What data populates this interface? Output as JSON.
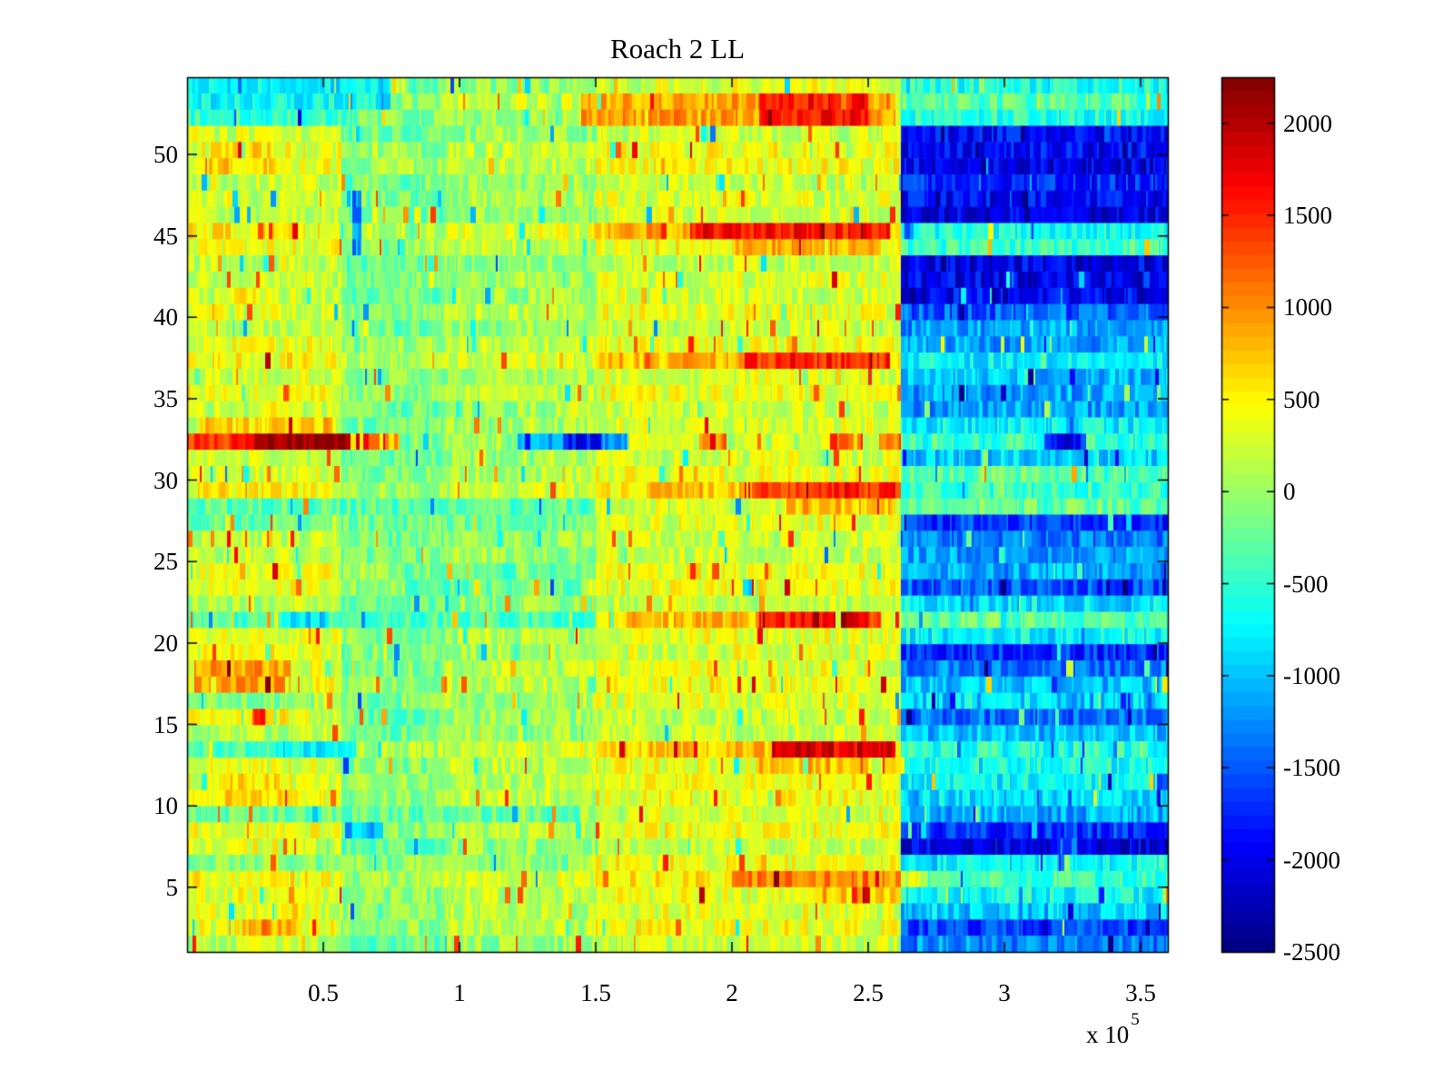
{
  "title": "Roach 2 LL",
  "axes": {
    "x_tick_labels": [
      "0.5",
      "1",
      "1.5",
      "2",
      "2.5",
      "3",
      "3.5"
    ],
    "x_tick_values": [
      0.5,
      1,
      1.5,
      2,
      2.5,
      3,
      3.5
    ],
    "x_unit_multiplier_label": "x 10",
    "x_unit_exponent": "5",
    "y_tick_labels": [
      "5",
      "10",
      "15",
      "20",
      "25",
      "30",
      "35",
      "40",
      "45",
      "50"
    ],
    "y_tick_values": [
      5,
      10,
      15,
      20,
      25,
      30,
      35,
      40,
      45,
      50
    ]
  },
  "colorbar": {
    "tick_labels": [
      "2000",
      "1500",
      "1000",
      "500",
      "0",
      "-500",
      "-1000",
      "-1500",
      "-2000",
      "-2500"
    ],
    "tick_values": [
      2000,
      1500,
      1000,
      500,
      0,
      -500,
      -1000,
      -1500,
      -2000,
      -2500
    ]
  },
  "chart_data": {
    "type": "heatmap",
    "title": "Roach 2 LL",
    "x_axis_units": "1e5",
    "xlim": [
      0,
      3.6
    ],
    "rows": 54,
    "clim": [
      -2500,
      2250
    ],
    "colormap": "jet",
    "colormap_levels": 64,
    "grid": false,
    "legend_position": "colorbar-right",
    "background_zones": [
      {
        "x": [
          0,
          0.57
        ],
        "v": 260
      },
      {
        "x": [
          0.57,
          0.95
        ],
        "v": -140
      },
      {
        "x": [
          0.95,
          1.5
        ],
        "v": 60
      },
      {
        "x": [
          1.5,
          2.62
        ],
        "v": 300
      },
      {
        "x": [
          2.62,
          3.6
        ],
        "v": -800
      }
    ],
    "divider_rows": [
      5,
      13,
      21,
      29,
      37,
      45,
      53
    ],
    "divider_boost": 150,
    "right_region_start_x": 2.62,
    "right_region_row_values": [
      -1200,
      -1700,
      -1000,
      -700,
      -500,
      -800,
      -1900,
      -1800,
      -1100,
      -1000,
      -800,
      -700,
      -600,
      -900,
      -1300,
      -900,
      -1100,
      -1400,
      -1700,
      -800,
      -250,
      -700,
      -1600,
      -1200,
      -1100,
      -1300,
      -1700,
      -200,
      -500,
      -300,
      -900,
      -400,
      -700,
      -1100,
      -1200,
      -1000,
      -800,
      -1200,
      -1100,
      -1500,
      -1900,
      -2000,
      -1900,
      -500,
      -700,
      -2000,
      -1900,
      -1700,
      -2100,
      -2000,
      -1800,
      -600,
      -300,
      -500
    ],
    "features": [
      {
        "rows": [
          27,
          28
        ],
        "x": [
          0,
          1.5
        ],
        "v": -250
      },
      {
        "rows": [
          9,
          9
        ],
        "x": [
          0,
          1.45
        ],
        "v": -250
      },
      {
        "rows": [
          6,
          6
        ],
        "x": [
          0,
          1.4
        ],
        "v": -180
      },
      {
        "rows": [
          21,
          21
        ],
        "x": [
          0,
          1.5
        ],
        "v": -350
      },
      {
        "rows": [
          21,
          21
        ],
        "x": [
          0.35,
          0.52
        ],
        "v": -850
      },
      {
        "rows": [
          13,
          13
        ],
        "x": [
          0,
          0.3
        ],
        "v": -350
      },
      {
        "rows": [
          13,
          13
        ],
        "x": [
          0.3,
          0.62
        ],
        "v": -800
      },
      {
        "rows": [
          23,
          24
        ],
        "x": [
          0.8,
          1.45
        ],
        "v": -350
      },
      {
        "rows": [
          53,
          54
        ],
        "x": [
          0,
          0.75
        ],
        "v": -650
      },
      {
        "rows": [
          52,
          52
        ],
        "x": [
          0,
          0.62
        ],
        "v": -450
      },
      {
        "rows": [
          44,
          47
        ],
        "x": [
          0.61,
          0.64
        ],
        "v": -1300
      },
      {
        "rows": [
          8,
          8
        ],
        "x": [
          0.58,
          0.72
        ],
        "v": -1100
      },
      {
        "rows": [
          51,
          51
        ],
        "x": [
          0,
          0.5
        ],
        "v": 350
      },
      {
        "rows": [
          49,
          50
        ],
        "x": [
          0.08,
          0.32
        ],
        "v": 550
      },
      {
        "rows": [
          41,
          41
        ],
        "x": [
          0.1,
          0.35
        ],
        "v": 450
      },
      {
        "rows": [
          35,
          35
        ],
        "x": [
          0,
          0.55
        ],
        "v": 350
      },
      {
        "rows": [
          33,
          33
        ],
        "x": [
          0.05,
          0.55
        ],
        "v": 700
      },
      {
        "rows": [
          19,
          19
        ],
        "x": [
          0.05,
          0.35
        ],
        "v": 550
      },
      {
        "rows": [
          17,
          18
        ],
        "x": [
          0.03,
          0.38
        ],
        "v": 850
      },
      {
        "rows": [
          16,
          16
        ],
        "x": [
          0,
          0.45
        ],
        "v": -150
      },
      {
        "rows": [
          15,
          15
        ],
        "x": [
          0,
          0.45
        ],
        "v": 600
      },
      {
        "rows": [
          15,
          15
        ],
        "x": [
          0.24,
          0.29
        ],
        "v": 1500
      },
      {
        "rows": [
          10,
          11
        ],
        "x": [
          0.1,
          0.35
        ],
        "v": 500
      },
      {
        "rows": [
          7,
          7
        ],
        "x": [
          0.1,
          0.35
        ],
        "v": 450
      },
      {
        "rows": [
          2,
          2
        ],
        "x": [
          0.2,
          0.42
        ],
        "v": 800
      },
      {
        "rows": [
          32,
          32
        ],
        "x": [
          0,
          0.25
        ],
        "v": 1500
      },
      {
        "rows": [
          32,
          32
        ],
        "x": [
          0.25,
          0.6
        ],
        "v": 2250
      },
      {
        "rows": [
          32,
          32
        ],
        "x": [
          0.6,
          0.78
        ],
        "v": 900
      },
      {
        "rows": [
          32,
          32
        ],
        "x": [
          1.2,
          1.62
        ],
        "v": -1100
      },
      {
        "rows": [
          32,
          32
        ],
        "x": [
          1.38,
          1.52
        ],
        "v": -1800
      },
      {
        "rows": [
          32,
          32
        ],
        "x": [
          1.88,
          1.98
        ],
        "v": 1100
      },
      {
        "rows": [
          32,
          32
        ],
        "x": [
          2.36,
          2.48
        ],
        "v": 1300
      },
      {
        "rows": [
          32,
          32
        ],
        "x": [
          2.54,
          2.62
        ],
        "v": 1100
      },
      {
        "rows": [
          32,
          32
        ],
        "x": [
          3.15,
          3.3
        ],
        "v": -1800
      },
      {
        "rows": [
          52,
          53
        ],
        "x": [
          1.45,
          2.1
        ],
        "v": 900
      },
      {
        "rows": [
          52,
          53
        ],
        "x": [
          2.1,
          2.5
        ],
        "v": 1600
      },
      {
        "rows": [
          52,
          53
        ],
        "x": [
          2.5,
          2.6
        ],
        "v": 1000
      },
      {
        "rows": [
          54,
          54
        ],
        "x": [
          1.7,
          2.6
        ],
        "v": 450
      },
      {
        "rows": [
          45,
          45
        ],
        "x": [
          1.55,
          1.85
        ],
        "v": 800
      },
      {
        "rows": [
          45,
          45
        ],
        "x": [
          1.85,
          2.58
        ],
        "v": 1500
      },
      {
        "rows": [
          44,
          44
        ],
        "x": [
          2.0,
          2.55
        ],
        "v": 750
      },
      {
        "rows": [
          37,
          37
        ],
        "x": [
          1.55,
          2.05
        ],
        "v": 700
      },
      {
        "rows": [
          37,
          37
        ],
        "x": [
          2.05,
          2.58
        ],
        "v": 1400
      },
      {
        "rows": [
          29,
          29
        ],
        "x": [
          1.7,
          2.05
        ],
        "v": 700
      },
      {
        "rows": [
          29,
          29
        ],
        "x": [
          2.05,
          2.62
        ],
        "v": 1400
      },
      {
        "rows": [
          28,
          28
        ],
        "x": [
          2.2,
          2.6
        ],
        "v": 800
      },
      {
        "rows": [
          21,
          21
        ],
        "x": [
          1.55,
          2.1
        ],
        "v": 800
      },
      {
        "rows": [
          21,
          21
        ],
        "x": [
          2.1,
          2.55
        ],
        "v": 1500
      },
      {
        "rows": [
          21,
          21
        ],
        "x": [
          2.25,
          2.5
        ],
        "v": 1800
      },
      {
        "rows": [
          13,
          13
        ],
        "x": [
          1.5,
          2.15
        ],
        "v": 700
      },
      {
        "rows": [
          13,
          13
        ],
        "x": [
          2.15,
          2.6
        ],
        "v": 1700
      },
      {
        "rows": [
          12,
          12
        ],
        "x": [
          2.1,
          2.5
        ],
        "v": 700
      },
      {
        "rows": [
          5,
          5
        ],
        "x": [
          1.7,
          2.0
        ],
        "v": 500
      },
      {
        "rows": [
          5,
          5
        ],
        "x": [
          2.0,
          2.62
        ],
        "v": 1000
      },
      {
        "rows": [
          4,
          4
        ],
        "x": [
          2.3,
          2.62
        ],
        "v": 600
      },
      {
        "rows": [
          5,
          5
        ],
        "x": [
          2.62,
          2.72
        ],
        "v": 200
      }
    ],
    "noise_amplitude": 320,
    "noise_amplitude_right": 360,
    "spike_probability": 0.05
  }
}
